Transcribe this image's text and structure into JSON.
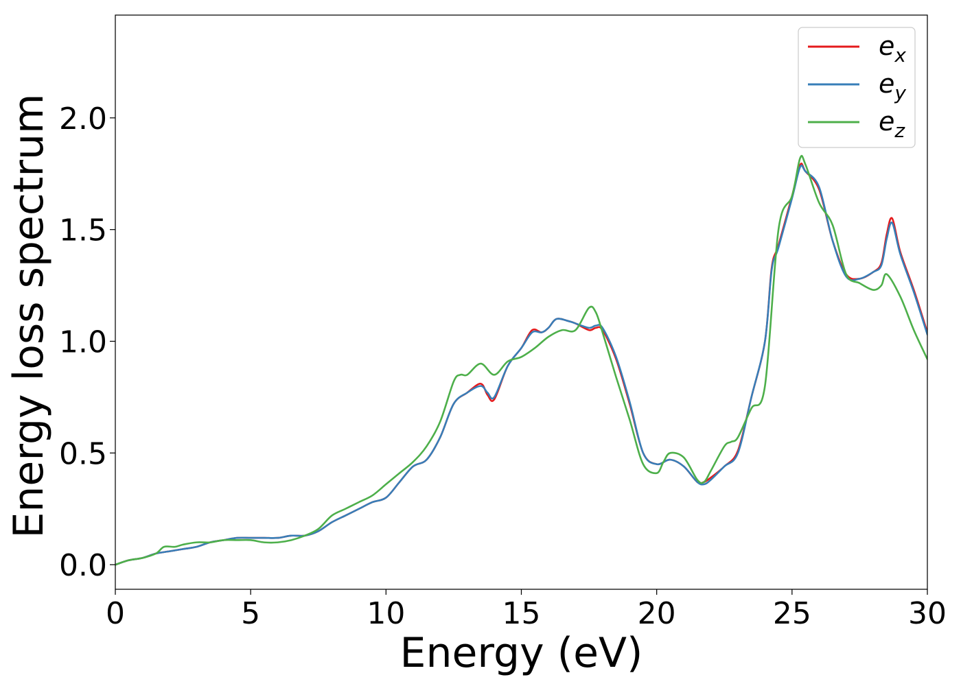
{
  "chart_data": {
    "type": "line",
    "title": "",
    "xlabel": "Energy (eV)",
    "ylabel": "Energy loss spectrum",
    "xlim": [
      0,
      30
    ],
    "ylim": [
      -0.11,
      2.46
    ],
    "xticks": [
      0,
      5,
      10,
      15,
      20,
      25,
      30
    ],
    "yticks": [
      0.0,
      0.5,
      1.0,
      1.5,
      2.0
    ],
    "xtick_labels": [
      "0",
      "5",
      "10",
      "15",
      "20",
      "25",
      "30"
    ],
    "ytick_labels": [
      "0.0",
      "0.5",
      "1.0",
      "1.5",
      "2.0"
    ],
    "grid": false,
    "legend_position": "top-right",
    "series": [
      {
        "name": "e",
        "subscript": "x",
        "color": "#e41a1c",
        "x": [
          0,
          0.5,
          1,
          1.5,
          2,
          2.5,
          3,
          3.5,
          4,
          4.5,
          5,
          5.5,
          6,
          6.5,
          7,
          7.5,
          8,
          8.5,
          9,
          9.5,
          10,
          10.5,
          11,
          11.5,
          12,
          12.5,
          13,
          13.5,
          13.75,
          14,
          14.5,
          15,
          15.4,
          15.75,
          16,
          16.3,
          16.75,
          17,
          17.5,
          17.75,
          18,
          18.5,
          19,
          19.5,
          20,
          20.5,
          21,
          21.5,
          21.75,
          22,
          22.5,
          23,
          23.5,
          24,
          24.25,
          24.5,
          25,
          25.3,
          25.5,
          26,
          26.5,
          27,
          27.5,
          28,
          28.3,
          28.5,
          28.7,
          29,
          29.5,
          30
        ],
        "y": [
          0.0,
          0.02,
          0.03,
          0.05,
          0.06,
          0.07,
          0.08,
          0.1,
          0.11,
          0.12,
          0.12,
          0.12,
          0.12,
          0.13,
          0.13,
          0.15,
          0.19,
          0.22,
          0.25,
          0.28,
          0.3,
          0.37,
          0.44,
          0.47,
          0.57,
          0.72,
          0.77,
          0.81,
          0.76,
          0.74,
          0.89,
          0.97,
          1.05,
          1.04,
          1.06,
          1.1,
          1.09,
          1.08,
          1.05,
          1.06,
          1.05,
          0.92,
          0.72,
          0.5,
          0.45,
          0.47,
          0.44,
          0.37,
          0.37,
          0.39,
          0.44,
          0.51,
          0.75,
          1.0,
          1.33,
          1.43,
          1.65,
          1.79,
          1.76,
          1.68,
          1.45,
          1.3,
          1.28,
          1.31,
          1.35,
          1.48,
          1.55,
          1.4,
          1.23,
          1.04
        ]
      },
      {
        "name": "e",
        "subscript": "y",
        "color": "#377eb8",
        "x": [
          0,
          0.5,
          1,
          1.5,
          2,
          2.5,
          3,
          3.5,
          4,
          4.5,
          5,
          5.5,
          6,
          6.5,
          7,
          7.5,
          8,
          8.5,
          9,
          9.5,
          10,
          10.5,
          11,
          11.5,
          12,
          12.5,
          13,
          13.5,
          13.75,
          14,
          14.5,
          15,
          15.4,
          15.75,
          16,
          16.3,
          16.75,
          17,
          17.5,
          17.75,
          18,
          18.5,
          19,
          19.5,
          20,
          20.5,
          21,
          21.5,
          21.75,
          22,
          22.5,
          23,
          23.5,
          24,
          24.25,
          24.5,
          25,
          25.3,
          25.5,
          26,
          26.5,
          27,
          27.5,
          28,
          28.3,
          28.5,
          28.7,
          29,
          29.5,
          30
        ],
        "y": [
          0.0,
          0.02,
          0.03,
          0.05,
          0.06,
          0.07,
          0.08,
          0.1,
          0.11,
          0.12,
          0.12,
          0.12,
          0.12,
          0.13,
          0.13,
          0.15,
          0.19,
          0.22,
          0.25,
          0.28,
          0.3,
          0.37,
          0.44,
          0.47,
          0.57,
          0.72,
          0.77,
          0.8,
          0.77,
          0.75,
          0.89,
          0.97,
          1.04,
          1.04,
          1.06,
          1.1,
          1.09,
          1.08,
          1.06,
          1.07,
          1.06,
          0.93,
          0.73,
          0.5,
          0.45,
          0.47,
          0.44,
          0.37,
          0.36,
          0.38,
          0.44,
          0.5,
          0.75,
          1.0,
          1.32,
          1.42,
          1.64,
          1.78,
          1.76,
          1.69,
          1.45,
          1.29,
          1.28,
          1.31,
          1.34,
          1.46,
          1.53,
          1.39,
          1.22,
          1.03
        ]
      },
      {
        "name": "e",
        "subscript": "z",
        "color": "#4daf4a",
        "x": [
          0,
          0.5,
          1,
          1.5,
          1.8,
          2.2,
          2.5,
          3,
          3.5,
          4,
          4.5,
          5,
          5.5,
          6,
          6.5,
          7,
          7.5,
          8,
          8.5,
          9,
          9.5,
          10,
          10.5,
          11,
          11.5,
          12,
          12.5,
          12.75,
          13,
          13.5,
          14,
          14.5,
          15,
          15.5,
          16,
          16.5,
          17,
          17.5,
          17.75,
          18,
          18.5,
          19,
          19.5,
          20,
          20.25,
          20.5,
          21,
          21.5,
          21.75,
          22,
          22.5,
          22.75,
          23,
          23.5,
          24,
          24.5,
          25,
          25.3,
          25.5,
          26,
          26.5,
          27,
          27.5,
          28,
          28.3,
          28.5,
          29,
          29.5,
          30
        ],
        "y": [
          0.0,
          0.02,
          0.03,
          0.05,
          0.08,
          0.08,
          0.09,
          0.1,
          0.1,
          0.11,
          0.11,
          0.11,
          0.1,
          0.1,
          0.11,
          0.13,
          0.16,
          0.22,
          0.25,
          0.28,
          0.31,
          0.36,
          0.41,
          0.46,
          0.53,
          0.64,
          0.82,
          0.85,
          0.85,
          0.9,
          0.85,
          0.91,
          0.93,
          0.97,
          1.02,
          1.05,
          1.05,
          1.15,
          1.13,
          1.04,
          0.84,
          0.65,
          0.45,
          0.41,
          0.46,
          0.5,
          0.48,
          0.38,
          0.37,
          0.42,
          0.53,
          0.55,
          0.57,
          0.7,
          0.8,
          1.5,
          1.65,
          1.82,
          1.79,
          1.62,
          1.52,
          1.3,
          1.26,
          1.23,
          1.25,
          1.3,
          1.2,
          1.05,
          0.92
        ]
      }
    ]
  }
}
